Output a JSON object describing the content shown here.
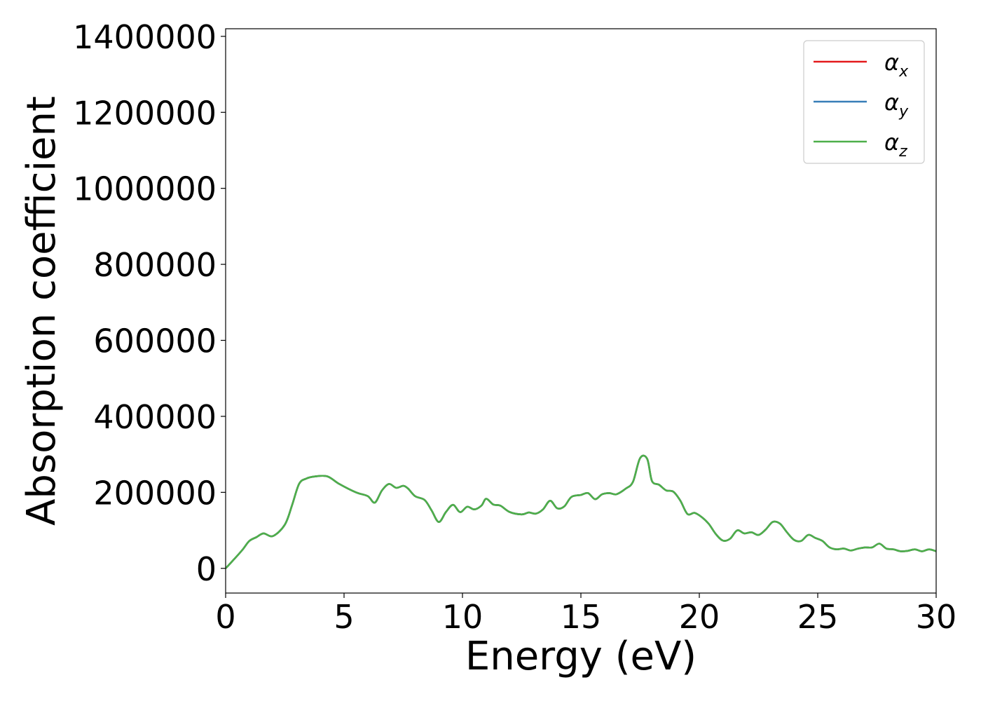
{
  "chart_data": {
    "type": "line",
    "title": "",
    "xlabel": "Energy (eV)",
    "ylabel": "Absorption coefficient",
    "xlim": [
      0,
      30
    ],
    "ylim": [
      -65000,
      1420000
    ],
    "xticks": [
      0,
      5,
      10,
      15,
      20,
      25,
      30
    ],
    "xtick_labels": [
      "0",
      "5",
      "10",
      "15",
      "20",
      "25",
      "30"
    ],
    "yticks": [
      0,
      200000,
      400000,
      600000,
      800000,
      1000000,
      1200000,
      1400000
    ],
    "ytick_labels": [
      "0",
      "200000",
      "400000",
      "600000",
      "800000",
      "1000000",
      "1200000",
      "1400000"
    ],
    "grid": false,
    "legend_position": "top-right",
    "series": [
      {
        "name": "αx",
        "color": "#e41a1c",
        "x": [
          0,
          0.3,
          0.7,
          1.0,
          1.3,
          1.6,
          2.0,
          2.5,
          2.8,
          3.1,
          3.4,
          3.8,
          4.3,
          4.8,
          5.5,
          6.0,
          6.3,
          6.6,
          6.9,
          7.2,
          7.5,
          7.7,
          8.0,
          8.4,
          8.7,
          9.0,
          9.3,
          9.6,
          9.9,
          10.2,
          10.5,
          10.8,
          11.0,
          11.3,
          11.6,
          12.0,
          12.5,
          12.8,
          13.1,
          13.4,
          13.7,
          14.0,
          14.3,
          14.6,
          15.0,
          15.3,
          15.6,
          15.9,
          16.2,
          16.5,
          16.9,
          17.2,
          17.5,
          17.8,
          18.0,
          18.3,
          18.6,
          18.9,
          19.2,
          19.5,
          19.8,
          20.1,
          20.4,
          20.7,
          21.0,
          21.3,
          21.6,
          21.9,
          22.2,
          22.5,
          22.8,
          23.1,
          23.4,
          23.7,
          24.0,
          24.3,
          24.6,
          24.9,
          25.2,
          25.5,
          25.8,
          26.1,
          26.4,
          26.7,
          27.0,
          27.3,
          27.6,
          27.9,
          28.2,
          28.5,
          28.8,
          29.1,
          29.4,
          29.7,
          30.0
        ],
        "y": [
          0,
          20000,
          48000,
          72000,
          82000,
          92000,
          85000,
          115000,
          165000,
          222000,
          236000,
          242000,
          242000,
          222000,
          200000,
          190000,
          173000,
          205000,
          222000,
          212000,
          217000,
          210000,
          190000,
          180000,
          152000,
          122000,
          148000,
          167000,
          148000,
          162000,
          155000,
          165000,
          183000,
          168000,
          165000,
          148000,
          142000,
          147000,
          144000,
          155000,
          178000,
          158000,
          163000,
          188000,
          193000,
          198000,
          182000,
          195000,
          198000,
          195000,
          210000,
          228000,
          290000,
          288000,
          230000,
          220000,
          205000,
          202000,
          178000,
          143000,
          146000,
          135000,
          117000,
          90000,
          73000,
          78000,
          100000,
          92000,
          95000,
          88000,
          102000,
          122000,
          118000,
          95000,
          75000,
          72000,
          88000,
          80000,
          72000,
          55000,
          50000,
          52000,
          47000,
          52000,
          55000,
          55000,
          65000,
          52000,
          50000,
          45000,
          46000,
          50000,
          45000,
          50000,
          45000
        ]
      },
      {
        "name": "αy",
        "color": "#377eb8",
        "x": [
          0,
          0.3,
          0.7,
          1.0,
          1.3,
          1.6,
          2.0,
          2.5,
          2.8,
          3.1,
          3.4,
          3.8,
          4.3,
          4.8,
          5.5,
          6.0,
          6.3,
          6.6,
          6.9,
          7.2,
          7.5,
          7.7,
          8.0,
          8.4,
          8.7,
          9.0,
          9.3,
          9.6,
          9.9,
          10.2,
          10.5,
          10.8,
          11.0,
          11.3,
          11.6,
          12.0,
          12.5,
          12.8,
          13.1,
          13.4,
          13.7,
          14.0,
          14.3,
          14.6,
          15.0,
          15.3,
          15.6,
          15.9,
          16.2,
          16.5,
          16.9,
          17.2,
          17.5,
          17.8,
          18.0,
          18.3,
          18.6,
          18.9,
          19.2,
          19.5,
          19.8,
          20.1,
          20.4,
          20.7,
          21.0,
          21.3,
          21.6,
          21.9,
          22.2,
          22.5,
          22.8,
          23.1,
          23.4,
          23.7,
          24.0,
          24.3,
          24.6,
          24.9,
          25.2,
          25.5,
          25.8,
          26.1,
          26.4,
          26.7,
          27.0,
          27.3,
          27.6,
          27.9,
          28.2,
          28.5,
          28.8,
          29.1,
          29.4,
          29.7,
          30.0
        ],
        "y": [
          0,
          20000,
          48000,
          72000,
          82000,
          92000,
          85000,
          115000,
          165000,
          222000,
          236000,
          242000,
          242000,
          222000,
          200000,
          190000,
          173000,
          205000,
          222000,
          212000,
          217000,
          210000,
          190000,
          180000,
          152000,
          122000,
          148000,
          167000,
          148000,
          162000,
          155000,
          165000,
          183000,
          168000,
          165000,
          148000,
          142000,
          147000,
          144000,
          155000,
          178000,
          158000,
          163000,
          188000,
          193000,
          198000,
          182000,
          195000,
          198000,
          195000,
          210000,
          228000,
          290000,
          288000,
          230000,
          220000,
          205000,
          202000,
          178000,
          143000,
          146000,
          135000,
          117000,
          90000,
          73000,
          78000,
          100000,
          92000,
          95000,
          88000,
          102000,
          122000,
          118000,
          95000,
          75000,
          72000,
          88000,
          80000,
          72000,
          55000,
          50000,
          52000,
          47000,
          52000,
          55000,
          55000,
          65000,
          52000,
          50000,
          45000,
          46000,
          50000,
          45000,
          50000,
          45000
        ]
      },
      {
        "name": "αz",
        "color": "#4daf4a",
        "x": [
          0,
          0.3,
          0.7,
          1.0,
          1.3,
          1.6,
          2.0,
          2.5,
          2.8,
          3.1,
          3.4,
          3.8,
          4.3,
          4.8,
          5.5,
          6.0,
          6.3,
          6.6,
          6.9,
          7.2,
          7.5,
          7.7,
          8.0,
          8.4,
          8.7,
          9.0,
          9.3,
          9.6,
          9.9,
          10.2,
          10.5,
          10.8,
          11.0,
          11.3,
          11.6,
          12.0,
          12.5,
          12.8,
          13.1,
          13.4,
          13.7,
          14.0,
          14.3,
          14.6,
          15.0,
          15.3,
          15.6,
          15.9,
          16.2,
          16.5,
          16.9,
          17.2,
          17.5,
          17.8,
          18.0,
          18.3,
          18.6,
          18.9,
          19.2,
          19.5,
          19.8,
          20.1,
          20.4,
          20.7,
          21.0,
          21.3,
          21.6,
          21.9,
          22.2,
          22.5,
          22.8,
          23.1,
          23.4,
          23.7,
          24.0,
          24.3,
          24.6,
          24.9,
          25.2,
          25.5,
          25.8,
          26.1,
          26.4,
          26.7,
          27.0,
          27.3,
          27.6,
          27.9,
          28.2,
          28.5,
          28.8,
          29.1,
          29.4,
          29.7,
          30.0
        ],
        "y": [
          0,
          20000,
          48000,
          72000,
          82000,
          92000,
          85000,
          115000,
          165000,
          222000,
          236000,
          242000,
          242000,
          222000,
          200000,
          190000,
          173000,
          205000,
          222000,
          212000,
          217000,
          210000,
          190000,
          180000,
          152000,
          122000,
          148000,
          167000,
          148000,
          162000,
          155000,
          165000,
          183000,
          168000,
          165000,
          148000,
          142000,
          147000,
          144000,
          155000,
          178000,
          158000,
          163000,
          188000,
          193000,
          198000,
          182000,
          195000,
          198000,
          195000,
          210000,
          228000,
          290000,
          288000,
          230000,
          220000,
          205000,
          202000,
          178000,
          143000,
          146000,
          135000,
          117000,
          90000,
          73000,
          78000,
          100000,
          92000,
          95000,
          88000,
          102000,
          122000,
          118000,
          95000,
          75000,
          72000,
          88000,
          80000,
          72000,
          55000,
          50000,
          52000,
          47000,
          52000,
          55000,
          55000,
          65000,
          52000,
          50000,
          45000,
          46000,
          50000,
          45000,
          50000,
          45000
        ]
      }
    ],
    "legend": [
      {
        "symbol": "α",
        "sub": "x",
        "color": "#e41a1c"
      },
      {
        "symbol": "α",
        "sub": "y",
        "color": "#377eb8"
      },
      {
        "symbol": "α",
        "sub": "z",
        "color": "#4daf4a"
      }
    ]
  }
}
